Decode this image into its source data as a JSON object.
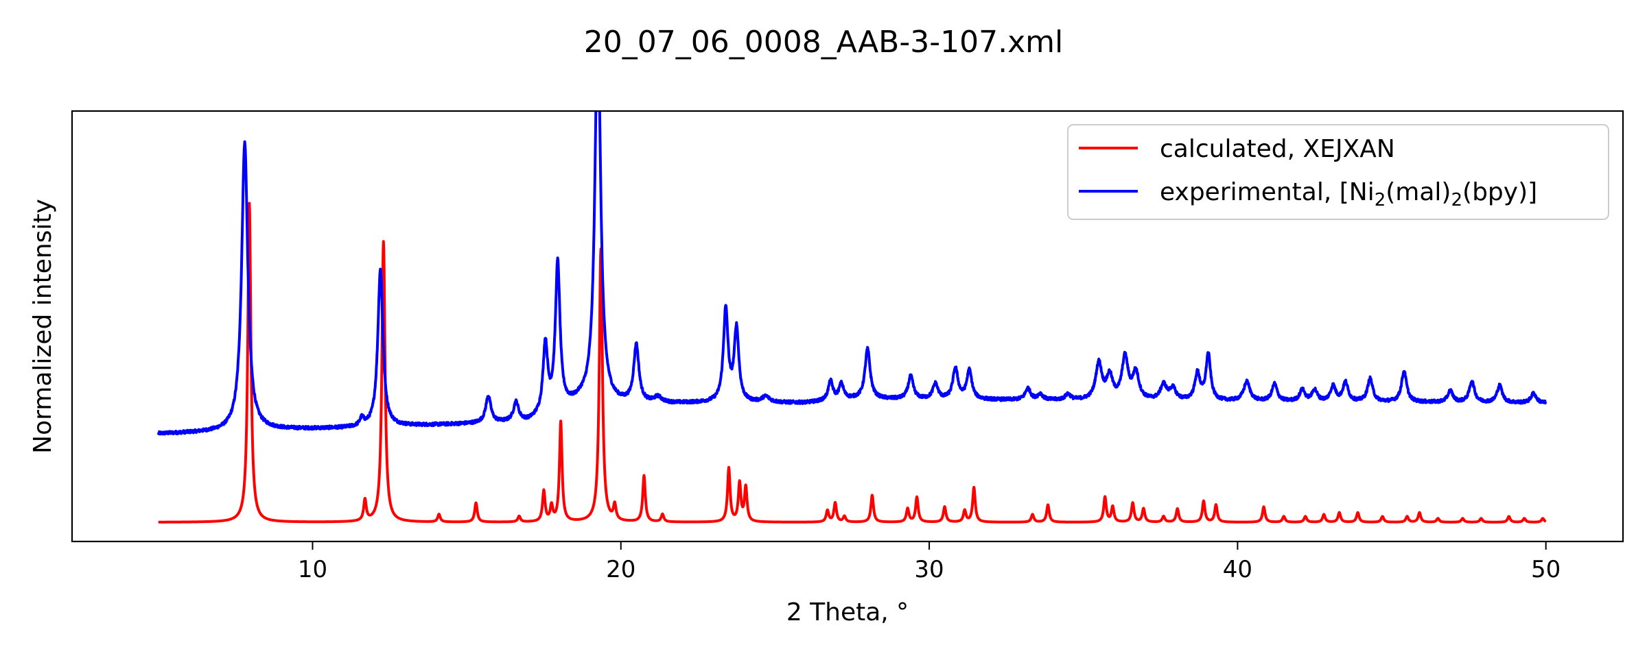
{
  "chart_data": {
    "type": "line",
    "title": "20_07_06_0008_AAB-3-107.xml",
    "xlabel": "2 Theta, °",
    "ylabel": "Normalized intensity",
    "xlim": [
      2.2,
      52.5
    ],
    "ylim": [
      -0.05,
      1.07
    ],
    "x_ticks": [
      10,
      20,
      30,
      40,
      50
    ],
    "y_ticks_shown": false,
    "grid": false,
    "legend": "top-right",
    "x_range": [
      5,
      50
    ],
    "series": [
      {
        "name": "calculated, XEJXAN",
        "legend_parts": [
          "calculated, XEJXAN"
        ],
        "color": "#ff0000",
        "baseline": 0.0,
        "noise": 0.0,
        "peaks": [
          [
            7.95,
            0.83,
            0.06
          ],
          [
            11.7,
            0.055,
            0.05
          ],
          [
            12.3,
            0.73,
            0.06
          ],
          [
            14.1,
            0.02,
            0.05
          ],
          [
            15.3,
            0.05,
            0.05
          ],
          [
            16.7,
            0.015,
            0.05
          ],
          [
            17.5,
            0.08,
            0.05
          ],
          [
            17.75,
            0.04,
            0.05
          ],
          [
            18.05,
            0.26,
            0.05
          ],
          [
            19.35,
            0.71,
            0.06
          ],
          [
            19.8,
            0.04,
            0.05
          ],
          [
            20.75,
            0.12,
            0.05
          ],
          [
            21.35,
            0.02,
            0.05
          ],
          [
            23.5,
            0.14,
            0.05
          ],
          [
            23.85,
            0.1,
            0.05
          ],
          [
            24.05,
            0.09,
            0.05
          ],
          [
            26.7,
            0.03,
            0.05
          ],
          [
            26.95,
            0.05,
            0.05
          ],
          [
            27.25,
            0.015,
            0.05
          ],
          [
            28.15,
            0.07,
            0.05
          ],
          [
            29.3,
            0.035,
            0.05
          ],
          [
            29.6,
            0.065,
            0.05
          ],
          [
            30.5,
            0.04,
            0.05
          ],
          [
            31.15,
            0.03,
            0.05
          ],
          [
            31.45,
            0.09,
            0.05
          ],
          [
            33.35,
            0.02,
            0.05
          ],
          [
            33.85,
            0.045,
            0.05
          ],
          [
            35.7,
            0.065,
            0.05
          ],
          [
            35.95,
            0.04,
            0.05
          ],
          [
            36.6,
            0.05,
            0.05
          ],
          [
            36.95,
            0.035,
            0.05
          ],
          [
            37.6,
            0.015,
            0.05
          ],
          [
            38.05,
            0.035,
            0.05
          ],
          [
            38.9,
            0.055,
            0.05
          ],
          [
            39.3,
            0.045,
            0.05
          ],
          [
            40.85,
            0.04,
            0.05
          ],
          [
            41.5,
            0.015,
            0.05
          ],
          [
            42.2,
            0.015,
            0.05
          ],
          [
            42.8,
            0.02,
            0.05
          ],
          [
            43.3,
            0.025,
            0.05
          ],
          [
            43.9,
            0.025,
            0.05
          ],
          [
            44.7,
            0.015,
            0.05
          ],
          [
            45.5,
            0.015,
            0.05
          ],
          [
            45.9,
            0.025,
            0.05
          ],
          [
            46.5,
            0.01,
            0.05
          ],
          [
            47.3,
            0.01,
            0.05
          ],
          [
            47.9,
            0.01,
            0.05
          ],
          [
            48.8,
            0.015,
            0.05
          ],
          [
            49.3,
            0.01,
            0.05
          ],
          [
            49.9,
            0.01,
            0.05
          ]
        ]
      },
      {
        "name": "experimental, [Ni2(mal)2(bpy)]",
        "legend_parts": [
          "experimental, [Ni",
          "2",
          "(mal)",
          "2",
          "(bpy)]"
        ],
        "color": "#0000ff",
        "baseline_points": [
          [
            5,
            0.23
          ],
          [
            7.2,
            0.235
          ],
          [
            8.5,
            0.24
          ],
          [
            11.5,
            0.245
          ],
          [
            13,
            0.25
          ],
          [
            15,
            0.255
          ],
          [
            17,
            0.26
          ],
          [
            18.7,
            0.31
          ],
          [
            19.7,
            0.305
          ],
          [
            23,
            0.31
          ],
          [
            26,
            0.31
          ],
          [
            27.5,
            0.32
          ],
          [
            50,
            0.31
          ]
        ],
        "noise": 0.004,
        "peaks": [
          [
            7.8,
            0.75,
            0.12
          ],
          [
            11.6,
            0.02,
            0.08
          ],
          [
            12.2,
            0.41,
            0.1
          ],
          [
            15.7,
            0.07,
            0.1
          ],
          [
            16.6,
            0.05,
            0.1
          ],
          [
            17.55,
            0.18,
            0.09
          ],
          [
            17.95,
            0.38,
            0.09
          ],
          [
            19.25,
            1.0,
            0.11
          ],
          [
            20.5,
            0.15,
            0.1
          ],
          [
            21.2,
            0.015,
            0.15
          ],
          [
            23.4,
            0.24,
            0.09
          ],
          [
            23.75,
            0.19,
            0.09
          ],
          [
            24.7,
            0.015,
            0.15
          ],
          [
            26.8,
            0.05,
            0.09
          ],
          [
            27.15,
            0.04,
            0.09
          ],
          [
            28.0,
            0.13,
            0.1
          ],
          [
            29.4,
            0.06,
            0.1
          ],
          [
            30.2,
            0.04,
            0.1
          ],
          [
            30.85,
            0.08,
            0.1
          ],
          [
            31.3,
            0.075,
            0.1
          ],
          [
            33.2,
            0.03,
            0.1
          ],
          [
            33.6,
            0.015,
            0.1
          ],
          [
            34.5,
            0.015,
            0.1
          ],
          [
            35.5,
            0.095,
            0.12
          ],
          [
            35.85,
            0.06,
            0.12
          ],
          [
            36.35,
            0.11,
            0.12
          ],
          [
            36.7,
            0.07,
            0.12
          ],
          [
            37.6,
            0.04,
            0.12
          ],
          [
            37.9,
            0.03,
            0.12
          ],
          [
            38.7,
            0.07,
            0.1
          ],
          [
            39.05,
            0.12,
            0.09
          ],
          [
            40.3,
            0.05,
            0.12
          ],
          [
            41.2,
            0.045,
            0.1
          ],
          [
            42.1,
            0.03,
            0.1
          ],
          [
            42.5,
            0.03,
            0.1
          ],
          [
            43.1,
            0.04,
            0.1
          ],
          [
            43.5,
            0.05,
            0.1
          ],
          [
            44.3,
            0.06,
            0.1
          ],
          [
            45.4,
            0.08,
            0.1
          ],
          [
            46.9,
            0.03,
            0.1
          ],
          [
            47.6,
            0.055,
            0.1
          ],
          [
            48.5,
            0.045,
            0.1
          ],
          [
            49.6,
            0.025,
            0.1
          ]
        ]
      }
    ]
  }
}
